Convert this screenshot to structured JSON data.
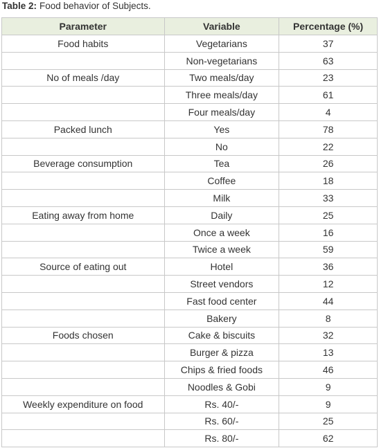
{
  "caption": {
    "label": "Table 2:",
    "text": "Food behavior of Subjects."
  },
  "table": {
    "header": [
      "Parameter",
      "Variable",
      "Percentage (%)"
    ],
    "groups": [
      {
        "parameter": "Food habits",
        "items": [
          {
            "variable": "Vegetarians",
            "percentage": 37
          },
          {
            "variable": "Non-vegetarians",
            "percentage": 63
          }
        ]
      },
      {
        "parameter": "No of meals /day",
        "items": [
          {
            "variable": "Two meals/day",
            "percentage": 23
          },
          {
            "variable": "Three meals/day",
            "percentage": 61
          },
          {
            "variable": "Four meals/day",
            "percentage": 4
          }
        ]
      },
      {
        "parameter": "Packed lunch",
        "items": [
          {
            "variable": "Yes",
            "percentage": 78
          },
          {
            "variable": "No",
            "percentage": 22
          }
        ]
      },
      {
        "parameter": "Beverage consumption",
        "items": [
          {
            "variable": "Tea",
            "percentage": 26
          },
          {
            "variable": "Coffee",
            "percentage": 18
          },
          {
            "variable": "Milk",
            "percentage": 33
          }
        ]
      },
      {
        "parameter": "Eating away from home",
        "items": [
          {
            "variable": "Daily",
            "percentage": 25
          },
          {
            "variable": "Once a week",
            "percentage": 16
          },
          {
            "variable": "Twice a week",
            "percentage": 59
          }
        ]
      },
      {
        "parameter": "Source of eating out",
        "items": [
          {
            "variable": "Hotel",
            "percentage": 36
          },
          {
            "variable": "Street vendors",
            "percentage": 12
          },
          {
            "variable": "Fast food center",
            "percentage": 44
          },
          {
            "variable": "Bakery",
            "percentage": 8
          }
        ]
      },
      {
        "parameter": "Foods chosen",
        "items": [
          {
            "variable": "Cake & biscuits",
            "percentage": 32
          },
          {
            "variable": "Burger & pizza",
            "percentage": 13
          },
          {
            "variable": "Chips & fried foods",
            "percentage": 46
          },
          {
            "variable": "Noodles & Gobi",
            "percentage": 9
          }
        ]
      },
      {
        "parameter": "Weekly expenditure on food",
        "items": [
          {
            "variable": "Rs. 40/-",
            "percentage": 9
          },
          {
            "variable": "Rs. 60/-",
            "percentage": 25
          },
          {
            "variable": "Rs. 80/-",
            "percentage": 62
          }
        ]
      }
    ]
  }
}
